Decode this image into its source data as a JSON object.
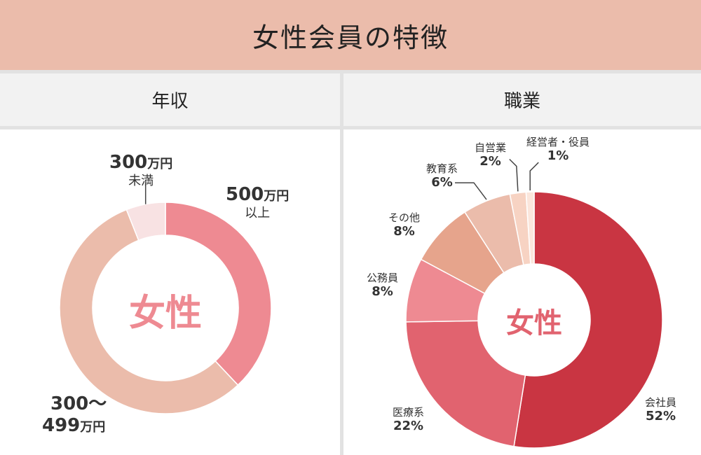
{
  "page": {
    "title": "女性会員の特徴"
  },
  "chart_data": [
    {
      "type": "pie",
      "header": "年収",
      "center_label": "女性",
      "slices": [
        {
          "label": "500万円以上",
          "value": 38,
          "color": "#ee8a92"
        },
        {
          "label": "300～499万円",
          "value": 56,
          "color": "#ebbcab"
        },
        {
          "label": "300万円未満",
          "value": 6,
          "color": "#f8e2e3"
        }
      ]
    },
    {
      "type": "pie",
      "header": "職業",
      "center_label": "女性",
      "slices": [
        {
          "label": "会社員",
          "value": 52,
          "display": "52%",
          "color": "#c93542"
        },
        {
          "label": "医療系",
          "value": 22,
          "display": "22%",
          "color": "#e1636f"
        },
        {
          "label": "公務員",
          "value": 8,
          "display": "8%",
          "color": "#ee8a92"
        },
        {
          "label": "その他",
          "value": 8,
          "display": "8%",
          "color": "#e6a48c"
        },
        {
          "label": "教育系",
          "value": 6,
          "display": "6%",
          "color": "#ebbcab"
        },
        {
          "label": "自営業",
          "value": 2,
          "display": "2%",
          "color": "#f7d3c3"
        },
        {
          "label": "経営者・役員",
          "value": 1,
          "display": "1%",
          "color": "#fbe6dc"
        }
      ]
    }
  ],
  "labels_income": {
    "high": {
      "num": "500",
      "unit": "万円",
      "line2": "以上"
    },
    "mid": {
      "line1": "300～",
      "num": "499",
      "unit": "万円"
    },
    "low": {
      "num": "300",
      "unit": "万円",
      "line2": "未満"
    }
  }
}
